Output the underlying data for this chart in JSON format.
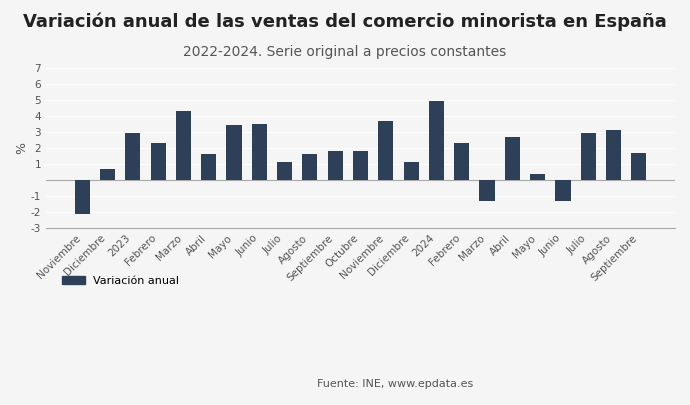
{
  "title": "Variación anual de las ventas del comercio minorista en España",
  "subtitle": "2022-2024. Serie original a precios constantes",
  "ylabel": "%",
  "categories": [
    "Noviembre",
    "Diciembre",
    "2023",
    "Febrero",
    "Marzo",
    "Abril",
    "Mayo",
    "Junio",
    "Julio",
    "Agosto",
    "Septiembre",
    "Octubre",
    "Noviembre",
    "Diciembre",
    "2024",
    "Febrero",
    "Marzo",
    "Abril",
    "Mayo",
    "Junio",
    "Julio",
    "Agosto",
    "Septiembre"
  ],
  "values": [
    -2.1,
    0.7,
    2.9,
    2.3,
    4.3,
    1.6,
    3.45,
    3.5,
    1.1,
    1.6,
    1.8,
    1.8,
    3.7,
    1.1,
    4.9,
    2.3,
    -1.3,
    2.7,
    0.4,
    -1.3,
    2.9,
    3.1,
    1.7
  ],
  "bar_color": "#2e4057",
  "background_color": "#f5f5f5",
  "ylim": [
    -3,
    7
  ],
  "yticks": [
    -3,
    -2,
    -1,
    0,
    1,
    2,
    3,
    4,
    5,
    6,
    7
  ],
  "legend_label": "Variación anual",
  "source_text": "Fuente: INE, www.epdata.es",
  "title_fontsize": 13,
  "subtitle_fontsize": 10,
  "tick_fontsize": 7.5,
  "ylabel_fontsize": 9
}
